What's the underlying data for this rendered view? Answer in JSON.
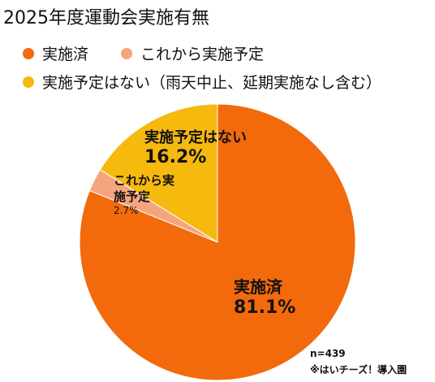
{
  "chart_data": {
    "type": "pie",
    "title": "2025年度運動会実施有無",
    "categories": [
      "実施済",
      "これから実施予定",
      "実施予定はない（雨天中止、延期実施なし含む）"
    ],
    "slice_labels": [
      "実施済",
      "これから実施予定",
      "実施予定はない"
    ],
    "values": [
      81.1,
      2.7,
      16.2
    ],
    "value_labels": [
      "81.1%",
      "2.7%",
      "16.2%"
    ],
    "colors": [
      "#f26a0c",
      "#f5a57d",
      "#f6b90d"
    ],
    "notes": [
      "n=439",
      "※はいチーズ！導入園"
    ]
  }
}
